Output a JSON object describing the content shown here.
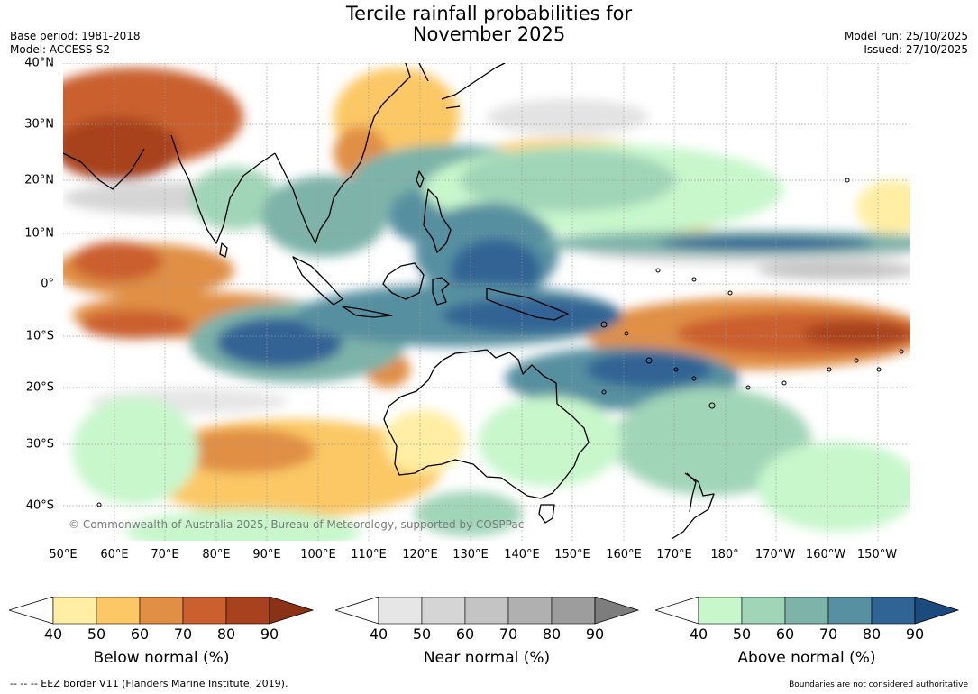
{
  "header": {
    "title_line1": "Tercile rainfall probabilities for",
    "title_line2": "November 2025",
    "base_period": "Base period: 1981-2018",
    "model": "Model: ACCESS-S2",
    "model_run": "Model run: 25/10/2025",
    "issued": "Issued: 27/10/2025"
  },
  "map": {
    "lat_labels": [
      "40°N",
      "30°N",
      "20°N",
      "10°N",
      "0°",
      "10°S",
      "20°S",
      "30°S",
      "40°S"
    ],
    "lon_labels": [
      "50°E",
      "60°E",
      "70°E",
      "80°E",
      "90°E",
      "100°E",
      "110°E",
      "120°E",
      "130°E",
      "140°E",
      "150°E",
      "160°E",
      "170°E",
      "180°",
      "170°W",
      "160°W",
      "150°W"
    ],
    "copyright": "© Commonwealth of Australia 2025, Bureau of Meteorology, supported by COSPPac"
  },
  "colorbars": {
    "below": {
      "label": "Below normal (%)",
      "ticks": [
        "40",
        "50",
        "60",
        "70",
        "80",
        "90"
      ],
      "colors": [
        "#ffeea3",
        "#fbc865",
        "#e08f45",
        "#cb5f2e",
        "#a8421e",
        "#8b3216"
      ]
    },
    "near": {
      "label": "Near normal (%)",
      "ticks": [
        "40",
        "50",
        "60",
        "70",
        "80",
        "90"
      ],
      "colors": [
        "#e6e6e6",
        "#d5d5d5",
        "#c4c4c4",
        "#b0b0b0",
        "#9d9d9d",
        "#7d7d7d"
      ]
    },
    "above": {
      "label": "Above normal (%)",
      "ticks": [
        "40",
        "50",
        "60",
        "70",
        "80",
        "90"
      ],
      "colors": [
        "#c8f7cc",
        "#a1d5b8",
        "#7db3a9",
        "#5790a0",
        "#306494",
        "#1b4a7d"
      ]
    }
  },
  "footer": {
    "eez_note": "--  --  -- EEZ border V11 (Flanders Marine Institute, 2019).",
    "boundaries_note": "Boundaries are not considered authoritative"
  }
}
